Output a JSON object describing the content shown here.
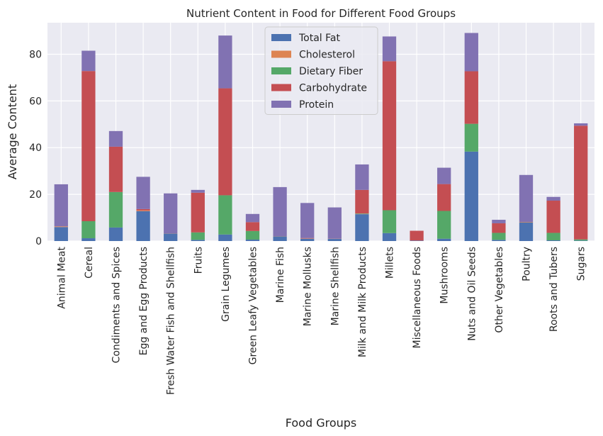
{
  "chart_data": {
    "type": "bar",
    "stacked": true,
    "title": "Nutrient Content in Food for Different Food Groups",
    "xlabel": "Food Groups",
    "ylabel": "Average Content",
    "ylim": [
      0,
      93.5
    ],
    "yticks": [
      0,
      20,
      40,
      60,
      80
    ],
    "grid": true,
    "legend": "top-center",
    "categories": [
      "Animal Meat",
      "Cereal",
      "Condiments and Spices",
      "Egg and Egg Products",
      "Fresh Water Fish and Shellfish",
      "Fruits",
      "Grain Legumes",
      "Green Leafy Vegetables",
      "Marine Fish",
      "Marine Mollusks",
      "Marine Shellfish",
      "Milk and Milk Products",
      "Millets",
      "Miscellaneous Foods",
      "Mushrooms",
      "Nuts and Oil Seeds",
      "Other Vegetables",
      "Poultry",
      "Roots and Tubers",
      "Sugars"
    ],
    "series": [
      {
        "name": "Total Fat",
        "color": "#4c72b0",
        "values": [
          6.0,
          1.2,
          5.8,
          12.8,
          3.2,
          0.5,
          2.8,
          0.6,
          2.0,
          1.0,
          0.9,
          11.5,
          3.4,
          0.2,
          1.0,
          38.3,
          0.5,
          8.0,
          0.3,
          0.2
        ]
      },
      {
        "name": "Cholesterol",
        "color": "#dd8452",
        "values": [
          0.3,
          0.0,
          0.0,
          0.3,
          0.1,
          0.0,
          0.0,
          0.0,
          0.1,
          0.1,
          0.1,
          0.1,
          0.0,
          0.0,
          0.0,
          0.0,
          0.0,
          0.2,
          0.0,
          0.0
        ]
      },
      {
        "name": "Dietary Fiber",
        "color": "#55a868",
        "values": [
          0.0,
          7.3,
          15.2,
          0.0,
          0.0,
          3.2,
          16.8,
          3.7,
          0.0,
          0.0,
          0.0,
          0.2,
          9.8,
          0.0,
          11.9,
          11.9,
          3.0,
          0.0,
          3.2,
          0.5
        ]
      },
      {
        "name": "Carbohydrate",
        "color": "#c44e52",
        "values": [
          0.0,
          64.3,
          19.4,
          0.6,
          0.0,
          17.0,
          45.8,
          3.8,
          0.0,
          0.2,
          0.0,
          10.1,
          63.8,
          4.2,
          11.5,
          22.5,
          4.1,
          0.0,
          13.8,
          48.7
        ]
      },
      {
        "name": "Protein",
        "color": "#8172b2",
        "values": [
          18.0,
          8.7,
          6.7,
          13.8,
          17.1,
          1.2,
          22.6,
          3.5,
          21.0,
          15.0,
          13.4,
          10.9,
          10.6,
          0.0,
          7.0,
          16.4,
          1.5,
          20.1,
          1.6,
          1.0
        ]
      }
    ]
  }
}
